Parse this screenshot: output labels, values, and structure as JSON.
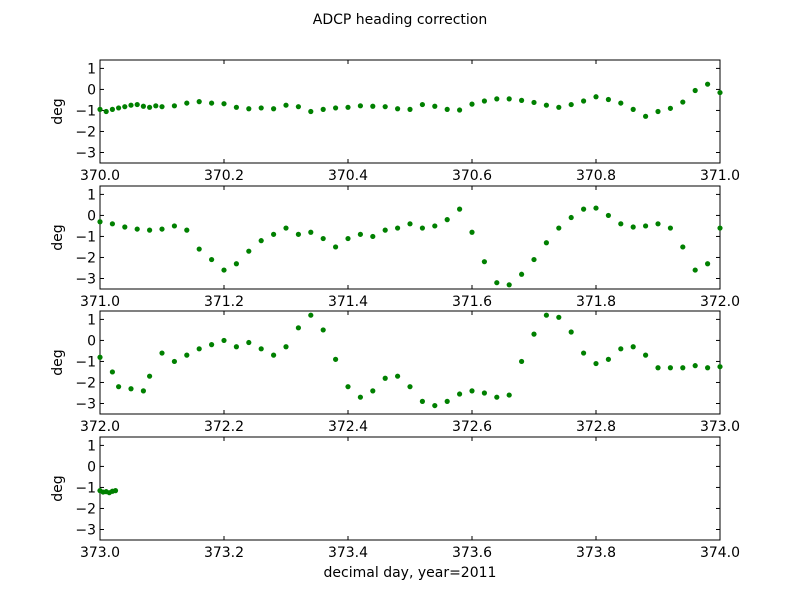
{
  "chart_data": {
    "type": "scatter",
    "title": "ADCP heading correction",
    "xlabel": "decimal day, year=2011",
    "ylabel": "deg",
    "marker_color": "#008000",
    "ylim": [
      -3.5,
      1.4
    ],
    "yticks": [
      1,
      0,
      -1,
      -2,
      -3
    ],
    "grid": false,
    "panels": [
      {
        "xlim": [
          370.0,
          371.0
        ],
        "xticks": [
          370.0,
          370.2,
          370.4,
          370.6,
          370.8,
          371.0
        ],
        "points": [
          [
            370.0,
            -0.95
          ],
          [
            370.01,
            -1.05
          ],
          [
            370.02,
            -0.95
          ],
          [
            370.03,
            -0.88
          ],
          [
            370.04,
            -0.82
          ],
          [
            370.05,
            -0.75
          ],
          [
            370.06,
            -0.72
          ],
          [
            370.07,
            -0.8
          ],
          [
            370.08,
            -0.85
          ],
          [
            370.09,
            -0.78
          ],
          [
            370.1,
            -0.82
          ],
          [
            370.12,
            -0.78
          ],
          [
            370.14,
            -0.65
          ],
          [
            370.16,
            -0.58
          ],
          [
            370.18,
            -0.65
          ],
          [
            370.2,
            -0.68
          ],
          [
            370.22,
            -0.85
          ],
          [
            370.24,
            -0.92
          ],
          [
            370.26,
            -0.88
          ],
          [
            370.28,
            -0.92
          ],
          [
            370.3,
            -0.75
          ],
          [
            370.32,
            -0.82
          ],
          [
            370.34,
            -1.05
          ],
          [
            370.36,
            -0.95
          ],
          [
            370.38,
            -0.88
          ],
          [
            370.4,
            -0.85
          ],
          [
            370.42,
            -0.78
          ],
          [
            370.44,
            -0.8
          ],
          [
            370.46,
            -0.82
          ],
          [
            370.48,
            -0.92
          ],
          [
            370.5,
            -0.95
          ],
          [
            370.52,
            -0.72
          ],
          [
            370.54,
            -0.8
          ],
          [
            370.56,
            -0.95
          ],
          [
            370.58,
            -0.98
          ],
          [
            370.6,
            -0.7
          ],
          [
            370.62,
            -0.55
          ],
          [
            370.64,
            -0.45
          ],
          [
            370.66,
            -0.45
          ],
          [
            370.68,
            -0.52
          ],
          [
            370.7,
            -0.62
          ],
          [
            370.72,
            -0.75
          ],
          [
            370.74,
            -0.85
          ],
          [
            370.76,
            -0.72
          ],
          [
            370.78,
            -0.55
          ],
          [
            370.8,
            -0.35
          ],
          [
            370.82,
            -0.48
          ],
          [
            370.84,
            -0.65
          ],
          [
            370.86,
            -0.95
          ],
          [
            370.88,
            -1.28
          ],
          [
            370.9,
            -1.05
          ],
          [
            370.92,
            -0.9
          ],
          [
            370.94,
            -0.6
          ],
          [
            370.96,
            -0.05
          ],
          [
            370.98,
            0.25
          ],
          [
            371.0,
            -0.15
          ]
        ]
      },
      {
        "xlim": [
          371.0,
          372.0
        ],
        "xticks": [
          371.0,
          371.2,
          371.4,
          371.6,
          371.8,
          372.0
        ],
        "points": [
          [
            371.0,
            -0.3
          ],
          [
            371.02,
            -0.4
          ],
          [
            371.04,
            -0.55
          ],
          [
            371.06,
            -0.65
          ],
          [
            371.08,
            -0.7
          ],
          [
            371.1,
            -0.65
          ],
          [
            371.12,
            -0.5
          ],
          [
            371.14,
            -0.7
          ],
          [
            371.16,
            -1.6
          ],
          [
            371.18,
            -2.1
          ],
          [
            371.2,
            -2.6
          ],
          [
            371.22,
            -2.3
          ],
          [
            371.24,
            -1.7
          ],
          [
            371.26,
            -1.2
          ],
          [
            371.28,
            -0.9
          ],
          [
            371.3,
            -0.6
          ],
          [
            371.32,
            -0.9
          ],
          [
            371.34,
            -0.8
          ],
          [
            371.36,
            -1.1
          ],
          [
            371.38,
            -1.5
          ],
          [
            371.4,
            -1.1
          ],
          [
            371.42,
            -0.9
          ],
          [
            371.44,
            -1.0
          ],
          [
            371.46,
            -0.7
          ],
          [
            371.48,
            -0.6
          ],
          [
            371.5,
            -0.4
          ],
          [
            371.52,
            -0.6
          ],
          [
            371.54,
            -0.5
          ],
          [
            371.56,
            -0.2
          ],
          [
            371.58,
            0.3
          ],
          [
            371.6,
            -0.8
          ],
          [
            371.62,
            -2.2
          ],
          [
            371.64,
            -3.2
          ],
          [
            371.66,
            -3.3
          ],
          [
            371.68,
            -2.8
          ],
          [
            371.7,
            -2.1
          ],
          [
            371.72,
            -1.3
          ],
          [
            371.74,
            -0.6
          ],
          [
            371.76,
            -0.1
          ],
          [
            371.78,
            0.3
          ],
          [
            371.8,
            0.35
          ],
          [
            371.82,
            0.0
          ],
          [
            371.84,
            -0.4
          ],
          [
            371.86,
            -0.55
          ],
          [
            371.88,
            -0.5
          ],
          [
            371.9,
            -0.4
          ],
          [
            371.92,
            -0.6
          ],
          [
            371.94,
            -1.5
          ],
          [
            371.96,
            -2.6
          ],
          [
            371.98,
            -2.3
          ],
          [
            372.0,
            -0.6
          ]
        ]
      },
      {
        "xlim": [
          372.0,
          373.0
        ],
        "xticks": [
          372.0,
          372.2,
          372.4,
          372.6,
          372.8,
          373.0
        ],
        "points": [
          [
            372.0,
            -0.8
          ],
          [
            372.02,
            -1.5
          ],
          [
            372.03,
            -2.2
          ],
          [
            372.05,
            -2.3
          ],
          [
            372.07,
            -2.4
          ],
          [
            372.08,
            -1.7
          ],
          [
            372.1,
            -0.6
          ],
          [
            372.12,
            -1.0
          ],
          [
            372.14,
            -0.7
          ],
          [
            372.16,
            -0.4
          ],
          [
            372.18,
            -0.2
          ],
          [
            372.2,
            0.0
          ],
          [
            372.22,
            -0.3
          ],
          [
            372.24,
            -0.1
          ],
          [
            372.26,
            -0.4
          ],
          [
            372.28,
            -0.7
          ],
          [
            372.3,
            -0.3
          ],
          [
            372.32,
            0.6
          ],
          [
            372.34,
            1.2
          ],
          [
            372.36,
            0.5
          ],
          [
            372.38,
            -0.9
          ],
          [
            372.4,
            -2.2
          ],
          [
            372.42,
            -2.7
          ],
          [
            372.44,
            -2.4
          ],
          [
            372.46,
            -1.8
          ],
          [
            372.48,
            -1.7
          ],
          [
            372.5,
            -2.2
          ],
          [
            372.52,
            -2.9
          ],
          [
            372.54,
            -3.1
          ],
          [
            372.56,
            -2.9
          ],
          [
            372.58,
            -2.55
          ],
          [
            372.6,
            -2.4
          ],
          [
            372.62,
            -2.5
          ],
          [
            372.64,
            -2.7
          ],
          [
            372.66,
            -2.6
          ],
          [
            372.68,
            -1.0
          ],
          [
            372.7,
            0.3
          ],
          [
            372.72,
            1.2
          ],
          [
            372.74,
            1.1
          ],
          [
            372.76,
            0.4
          ],
          [
            372.78,
            -0.6
          ],
          [
            372.8,
            -1.1
          ],
          [
            372.82,
            -0.9
          ],
          [
            372.84,
            -0.4
          ],
          [
            372.86,
            -0.3
          ],
          [
            372.88,
            -0.7
          ],
          [
            372.9,
            -1.3
          ],
          [
            372.92,
            -1.3
          ],
          [
            372.94,
            -1.3
          ],
          [
            372.96,
            -1.2
          ],
          [
            372.98,
            -1.3
          ],
          [
            373.0,
            -1.25
          ]
        ]
      },
      {
        "xlim": [
          373.0,
          374.0
        ],
        "xticks": [
          373.0,
          373.2,
          373.4,
          373.6,
          373.8,
          374.0
        ],
        "points": [
          [
            373.0,
            -1.15
          ],
          [
            373.005,
            -1.22
          ],
          [
            373.01,
            -1.2
          ],
          [
            373.015,
            -1.25
          ],
          [
            373.02,
            -1.18
          ],
          [
            373.025,
            -1.15
          ]
        ]
      }
    ]
  }
}
